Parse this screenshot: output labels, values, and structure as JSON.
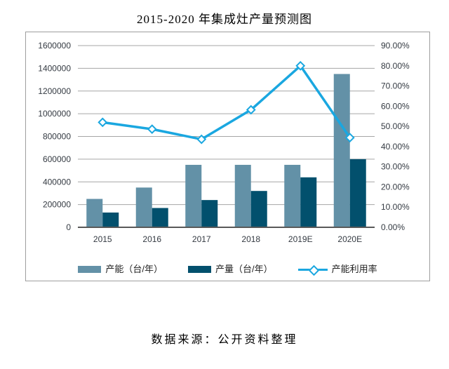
{
  "page": {
    "title": "2015-2020 年集成灶产量预测图",
    "source_note": "数据来源：公开资料整理"
  },
  "chart_data": {
    "type": "combo",
    "title": "2015-2020 年集成灶产量预测图",
    "categories": [
      "2015",
      "2016",
      "2017",
      "2018",
      "2019E",
      "2020E"
    ],
    "series": [
      {
        "name": "产能（台/年）",
        "type": "bar",
        "axis": "left",
        "color": "#6391A7",
        "values": [
          250000,
          350000,
          550000,
          550000,
          550000,
          1350000
        ]
      },
      {
        "name": "产量（台/年）",
        "type": "bar",
        "axis": "left",
        "color": "#02506D",
        "values": [
          130000,
          170000,
          240000,
          320000,
          440000,
          600000
        ]
      },
      {
        "name": "产能利用率",
        "type": "line",
        "axis": "right",
        "color": "#1AA7E0",
        "values": [
          52.0,
          48.6,
          43.6,
          58.2,
          80.0,
          44.4
        ],
        "unit": "%",
        "marker": "diamond-white-fill"
      }
    ],
    "left_axis": {
      "min": 0,
      "max": 1600000,
      "step": 200000,
      "tick_labels": [
        "0",
        "200000",
        "400000",
        "600000",
        "800000",
        "1000000",
        "1200000",
        "1400000",
        "1600000"
      ]
    },
    "right_axis": {
      "min": 0,
      "max": 90,
      "step": 10,
      "tick_labels": [
        "0.00%",
        "10.00%",
        "20.00%",
        "30.00%",
        "40.00%",
        "50.00%",
        "60.00%",
        "70.00%",
        "80.00%",
        "90.00%"
      ]
    },
    "legend_position": "bottom",
    "grid": true,
    "style": {
      "gridline": "#A6A6A6",
      "axis_line": "#595959",
      "axis_text": "#343A42",
      "border": "#9E9E9E",
      "background": "#FFFFFF"
    }
  }
}
